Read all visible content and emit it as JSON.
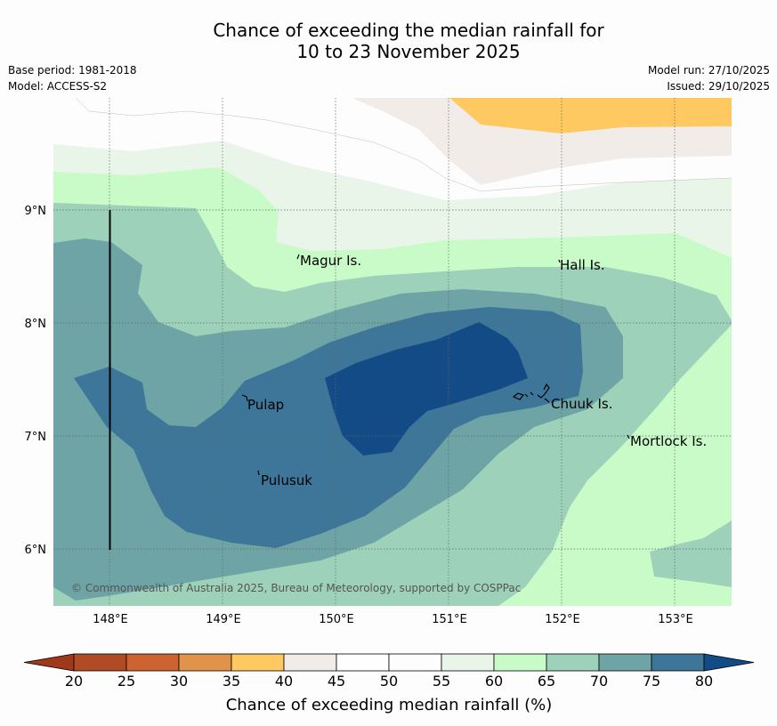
{
  "header": {
    "title_line1": "Chance of exceeding the median rainfall for",
    "title_line2": "10 to 23 November 2025",
    "base_period": "Base period: 1981-2018",
    "model": "Model: ACCESS-S2",
    "model_run": "Model run: 27/10/2025",
    "issued": "Issued: 29/10/2025"
  },
  "map": {
    "lat_labels": [
      "9°N",
      "8°N",
      "7°N",
      "6°N"
    ],
    "lon_labels": [
      "148°E",
      "149°E",
      "150°E",
      "151°E",
      "152°E",
      "153°E"
    ],
    "places": {
      "magur": "Magur Is.",
      "hall": "Hall Is.",
      "pulap": "Pulap",
      "chuuk": "Chuuk Is.",
      "mortlock": "Mortlock Is.",
      "pulusuk": "Pulusuk"
    },
    "copyright": "© Commonwealth of Australia 2025, Bureau of Meteorology, supported by COSPPac"
  },
  "colorbar": {
    "title": "Chance of exceeding median rainfall (%)",
    "ticks": [
      "20",
      "25",
      "30",
      "35",
      "40",
      "45",
      "50",
      "55",
      "60",
      "65",
      "70",
      "75",
      "80"
    ],
    "colors": {
      "below20": "#a0391c",
      "c20_25": "#b14b26",
      "c25_30": "#cc6331",
      "c30_35": "#e0934b",
      "c35_40": "#fec961",
      "c40_45": "#f1ece8",
      "c45_50": "#fefefe",
      "c50_55": "#fdfdfd",
      "c55_60": "#eaf5ea",
      "c60_65": "#c8fbc8",
      "c65_70": "#9ed1b9",
      "c70_75": "#6ea4a5",
      "c75_80": "#3d7698",
      "above80": "#134b87"
    }
  }
}
